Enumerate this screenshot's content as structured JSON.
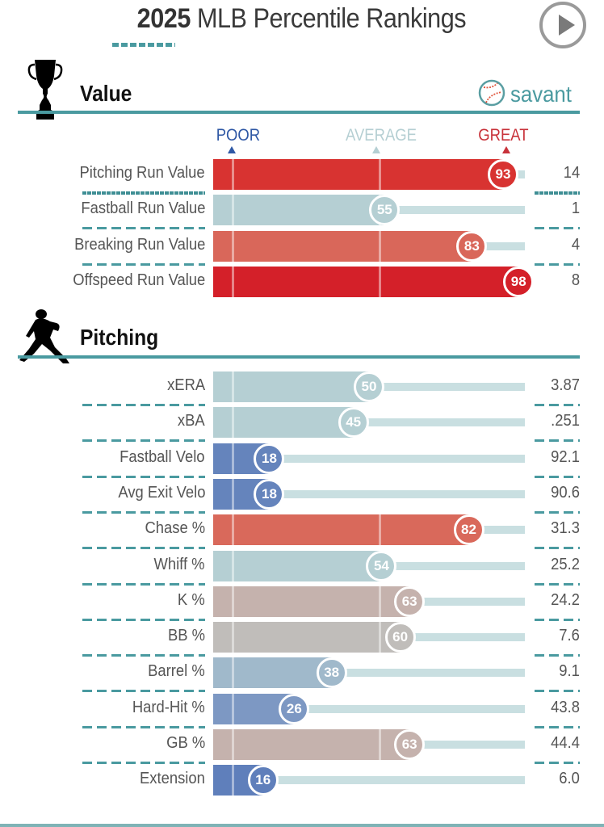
{
  "header": {
    "title_year": "2025",
    "title_rest": " MLB Percentile Rankings",
    "play_button": "play-icon"
  },
  "branding": {
    "logo_text": "savant",
    "logo_icon": "baseball-icon"
  },
  "scale": {
    "poor": "POOR",
    "average": "AVERAGE",
    "great": "GREAT"
  },
  "colors": {
    "teal_accent": "#4a9aa0",
    "poor_blue": "#2f58a5",
    "average_gray": "#b5cfd3",
    "great_red": "#d42a2e"
  },
  "sections": [
    {
      "title": "Value",
      "icon": "trophy-icon"
    },
    {
      "title": "Pitching",
      "icon": "pitcher-icon"
    }
  ],
  "chart_data": {
    "type": "bar",
    "title": "2025 MLB Percentile Rankings",
    "xlabel": "Percentile",
    "xlim": [
      0,
      100
    ],
    "scale_labels": [
      "POOR",
      "AVERAGE",
      "GREAT"
    ],
    "groups": [
      {
        "name": "Value",
        "rows": [
          {
            "label": "Pitching Run Value",
            "percentile": 93,
            "value": "14",
            "color": "#d83331"
          },
          {
            "label": "Fastball Run Value",
            "percentile": 55,
            "value": "1",
            "color": "#b5cfd3"
          },
          {
            "label": "Breaking Run Value",
            "percentile": 83,
            "value": "4",
            "color": "#d9675a"
          },
          {
            "label": "Offspeed Run Value",
            "percentile": 98,
            "value": "8",
            "color": "#d42029"
          }
        ]
      },
      {
        "name": "Pitching",
        "rows": [
          {
            "label": "xERA",
            "percentile": 50,
            "value": "3.87",
            "color": "#b5cfd3"
          },
          {
            "label": "xBA",
            "percentile": 45,
            "value": ".251",
            "color": "#b5cfd3"
          },
          {
            "label": "Fastball Velo",
            "percentile": 18,
            "value": "92.1",
            "color": "#6584bc"
          },
          {
            "label": "Avg Exit Velo",
            "percentile": 18,
            "value": "90.6",
            "color": "#6584bc"
          },
          {
            "label": "Chase %",
            "percentile": 82,
            "value": "31.3",
            "color": "#d9695b"
          },
          {
            "label": "Whiff %",
            "percentile": 54,
            "value": "25.2",
            "color": "#b5cfd3"
          },
          {
            "label": "K %",
            "percentile": 63,
            "value": "24.2",
            "color": "#c5b2ad"
          },
          {
            "label": "BB %",
            "percentile": 60,
            "value": "7.6",
            "color": "#c0bdba"
          },
          {
            "label": "Barrel %",
            "percentile": 38,
            "value": "9.1",
            "color": "#a0b9cb"
          },
          {
            "label": "Hard-Hit %",
            "percentile": 26,
            "value": "43.8",
            "color": "#7d98c3"
          },
          {
            "label": "GB %",
            "percentile": 63,
            "value": "44.4",
            "color": "#c5b2ad"
          },
          {
            "label": "Extension",
            "percentile": 16,
            "value": "6.0",
            "color": "#5f7fbb"
          }
        ]
      }
    ]
  }
}
